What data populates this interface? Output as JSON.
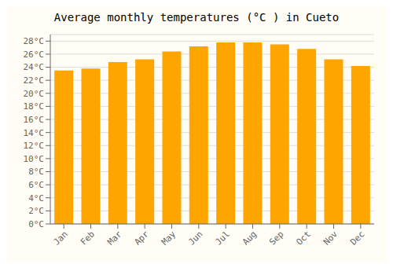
{
  "chart_data": {
    "type": "bar",
    "title": "Average monthly temperatures (°C ) in Cueto",
    "categories": [
      "Jan",
      "Feb",
      "Mar",
      "Apr",
      "May",
      "Jun",
      "Jul",
      "Aug",
      "Sep",
      "Oct",
      "Nov",
      "Dec"
    ],
    "values": [
      23.5,
      23.8,
      24.8,
      25.2,
      26.4,
      27.2,
      27.8,
      27.8,
      27.5,
      26.8,
      25.2,
      24.2
    ],
    "color": "#FFA500",
    "ylim": [
      0,
      29
    ],
    "yticks": [
      {
        "value": 0,
        "label": "0°C"
      },
      {
        "value": 2,
        "label": "2°C"
      },
      {
        "value": 4,
        "label": "4°C"
      },
      {
        "value": 6,
        "label": "6°C"
      },
      {
        "value": 8,
        "label": "8°C"
      },
      {
        "value": 10,
        "label": "10°C"
      },
      {
        "value": 12,
        "label": "12°C"
      },
      {
        "value": 14,
        "label": "14°C"
      },
      {
        "value": 16,
        "label": "16°C"
      },
      {
        "value": 18,
        "label": "18°C"
      },
      {
        "value": 20,
        "label": "20°C"
      },
      {
        "value": 22,
        "label": "22°C"
      },
      {
        "value": 24,
        "label": "24°C"
      },
      {
        "value": 26,
        "label": "26°C"
      },
      {
        "value": 28,
        "label": "28°C"
      }
    ],
    "grid": true
  }
}
